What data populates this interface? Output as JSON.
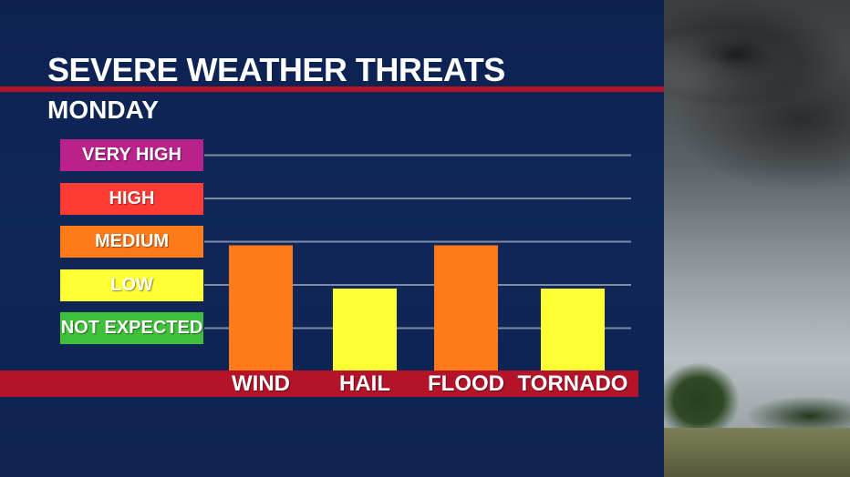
{
  "header": {
    "title": "SEVERE WEATHER THREATS",
    "subtitle": "MONDAY"
  },
  "chart_data": {
    "type": "bar",
    "categories": [
      "WIND",
      "HAIL",
      "FLOOD",
      "TORNADO"
    ],
    "values": [
      3,
      2,
      3,
      2
    ],
    "levels": [
      {
        "label": "NOT EXPECTED",
        "value": 1,
        "color": "#3ec03a"
      },
      {
        "label": "LOW",
        "value": 2,
        "color": "#ffff33"
      },
      {
        "label": "MEDIUM",
        "value": 3,
        "color": "#ff7a18"
      },
      {
        "label": "HIGH",
        "value": 4,
        "color": "#ff3b33"
      },
      {
        "label": "VERY HIGH",
        "value": 5,
        "color": "#b8228a"
      }
    ],
    "ylim": [
      0,
      5
    ],
    "grid": true
  },
  "colors": {
    "panel": "#0e2350",
    "accent_red": "#b3142a",
    "gridline": "#7f8aa3"
  }
}
